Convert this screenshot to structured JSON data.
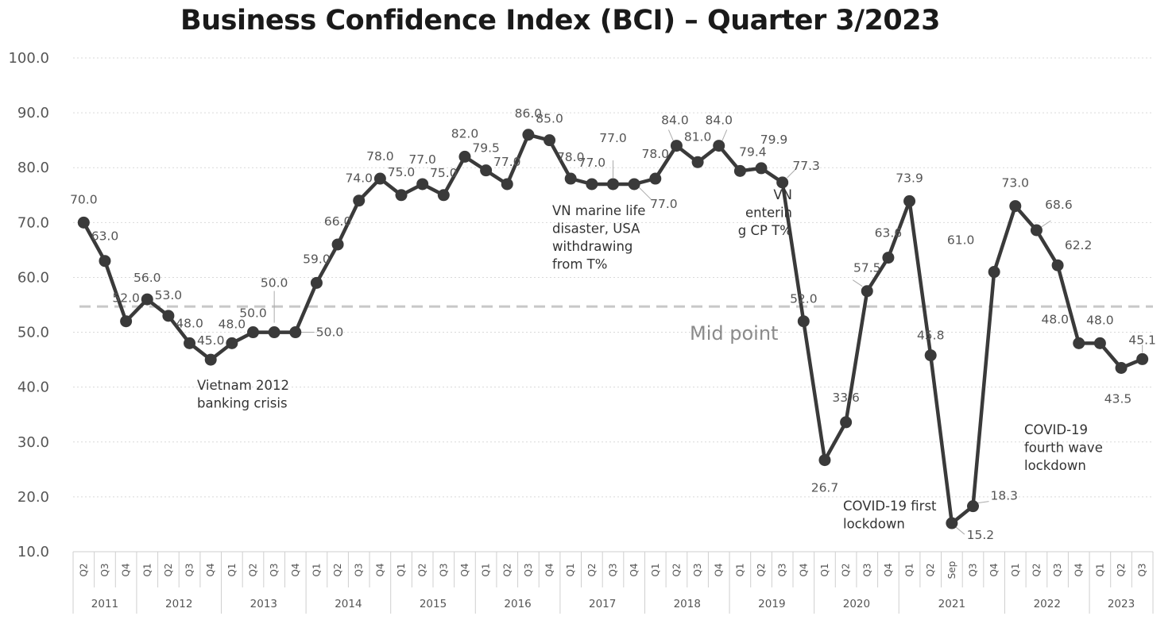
{
  "chart_data": {
    "type": "line",
    "title": "Business Confidence Index (BCI) – Quarter 3/2023",
    "xlabel": "",
    "ylabel": "",
    "ylim": [
      10,
      100
    ],
    "yticks": [
      "10.0",
      "20.0",
      "30.0",
      "40.0",
      "50.0",
      "60.0",
      "70.0",
      "80.0",
      "90.0",
      "100.0"
    ],
    "grid": true,
    "quarters": [
      "Q2",
      "Q3",
      "Q4",
      "Q1",
      "Q2",
      "Q3",
      "Q4",
      "Q1",
      "Q2",
      "Q3",
      "Q4",
      "Q1",
      "Q2",
      "Q3",
      "Q4",
      "Q1",
      "Q2",
      "Q3",
      "Q4",
      "Q1",
      "Q2",
      "Q3",
      "Q4",
      "Q1",
      "Q2",
      "Q3",
      "Q4",
      "Q1",
      "Q2",
      "Q3",
      "Q4",
      "Q1",
      "Q2",
      "Q3",
      "Q4",
      "Q1",
      "Q2",
      "Q3",
      "Q4",
      "Q1",
      "Q2",
      "Sep",
      "Q3",
      "Q4",
      "Q1",
      "Q2",
      "Q3",
      "Q4",
      "Q1",
      "Q2",
      "Q3"
    ],
    "years": [
      {
        "label": "2011",
        "start": 0,
        "end": 2
      },
      {
        "label": "2012",
        "start": 3,
        "end": 6
      },
      {
        "label": "2013",
        "start": 7,
        "end": 10
      },
      {
        "label": "2014",
        "start": 11,
        "end": 14
      },
      {
        "label": "2015",
        "start": 15,
        "end": 18
      },
      {
        "label": "2016",
        "start": 19,
        "end": 22
      },
      {
        "label": "2017",
        "start": 23,
        "end": 26
      },
      {
        "label": "2018",
        "start": 27,
        "end": 30
      },
      {
        "label": "2019",
        "start": 31,
        "end": 34
      },
      {
        "label": "2020",
        "start": 35,
        "end": 38
      },
      {
        "label": "2021",
        "start": 39,
        "end": 43
      },
      {
        "label": "2022",
        "start": 44,
        "end": 47
      },
      {
        "label": "2023",
        "start": 48,
        "end": 50
      }
    ],
    "series": [
      {
        "values": [
          70.0,
          63.0,
          52.0,
          56.0,
          53.0,
          48.0,
          45.0,
          48.0,
          50.0,
          50.0,
          50.0,
          59.0,
          66.0,
          74.0,
          78.0,
          75.0,
          77.0,
          75.0,
          82.0,
          79.5,
          77.0,
          86.0,
          85.0,
          78.0,
          77.0,
          77.0,
          77.0,
          78.0,
          84.0,
          81.0,
          84.0,
          79.4,
          79.9,
          77.3,
          52.0,
          26.7,
          33.6,
          57.5,
          63.6,
          73.9,
          45.8,
          15.2,
          18.3,
          61.0,
          73.0,
          68.6,
          62.2,
          48.0,
          48.0,
          43.5,
          45.1
        ],
        "labels": [
          "70.0",
          "63.0",
          "52.0",
          "56.0",
          "53.0",
          "48.0",
          "45.0",
          "48.0",
          "50.0",
          "50.0",
          "50.0",
          "59.0",
          "66.0",
          "74.0",
          "78.0",
          "75.0",
          "77.0",
          "75.0",
          "82.0",
          "79.5",
          "77.0",
          "86.0",
          "85.0",
          "78.0",
          "77.0",
          "77.0",
          "77.0",
          "78.0",
          "84.0",
          "81.0",
          "84.0",
          "79.4",
          "79.9",
          "77.3",
          "52.0",
          "26.7",
          "33.6",
          "57.5",
          "63.6",
          "73.9",
          "45.8",
          "15.2",
          "18.3",
          "61.0",
          "73.0",
          "68.6",
          "62.2",
          "48.0",
          "48.0",
          "43.5",
          "45.1"
        ],
        "color": "#3a3a3a"
      }
    ],
    "midpoint": {
      "value": 54.7,
      "label": "Mid point",
      "color": "#c8c8c8"
    },
    "annotations": [
      {
        "lines": [
          "Vietnam 2012",
          "banking crisis"
        ]
      },
      {
        "lines": [
          "VN marine life",
          "disaster, USA",
          "withdrawing",
          "from T%"
        ]
      },
      {
        "lines": [
          "VN",
          "enterin",
          "g CP T%"
        ]
      },
      {
        "lines": [
          "COVID-19 first",
          "lockdown"
        ]
      },
      {
        "lines": [
          "COVID-19",
          "fourth wave",
          "lockdown"
        ]
      }
    ]
  }
}
